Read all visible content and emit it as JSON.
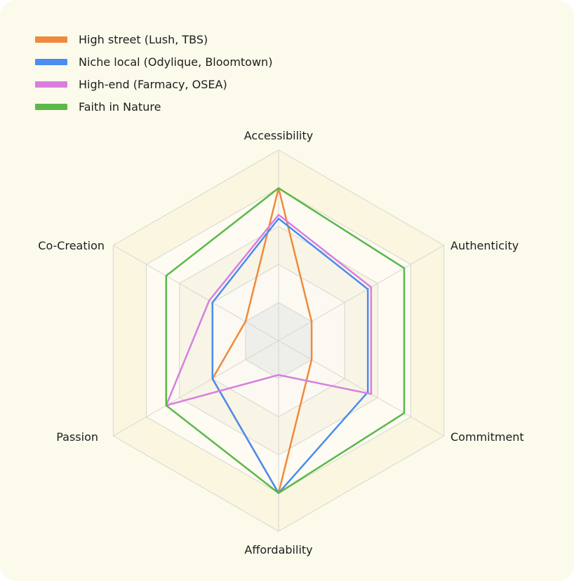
{
  "chart_data": {
    "type": "radar",
    "axes": [
      "Accessibility",
      "Authenticity",
      "Commitment",
      "Affordability",
      "Passion",
      "Co-Creation"
    ],
    "rlim": [
      0,
      5
    ],
    "grid_levels": [
      1,
      2,
      3,
      4,
      5
    ],
    "legend_position": "top-left",
    "series": [
      {
        "name": "High street (Lush, TBS)",
        "color": "#ef8a3c",
        "values": [
          4,
          1,
          1,
          4,
          2,
          1
        ]
      },
      {
        "name": "Niche local (Odylique, Bloomtown)",
        "color": "#4a8cf0",
        "values": [
          3.2,
          2.7,
          2.7,
          4,
          2,
          2
        ]
      },
      {
        "name": "High-end (Farmacy, OSEA)",
        "color": "#d97ee0",
        "values": [
          3.3,
          2.8,
          2.8,
          0.9,
          3.4,
          2.1
        ]
      },
      {
        "name": "Faith in Nature",
        "color": "#5cb84a",
        "values": [
          4,
          3.8,
          3.8,
          4,
          3.4,
          3.4
        ]
      }
    ]
  }
}
